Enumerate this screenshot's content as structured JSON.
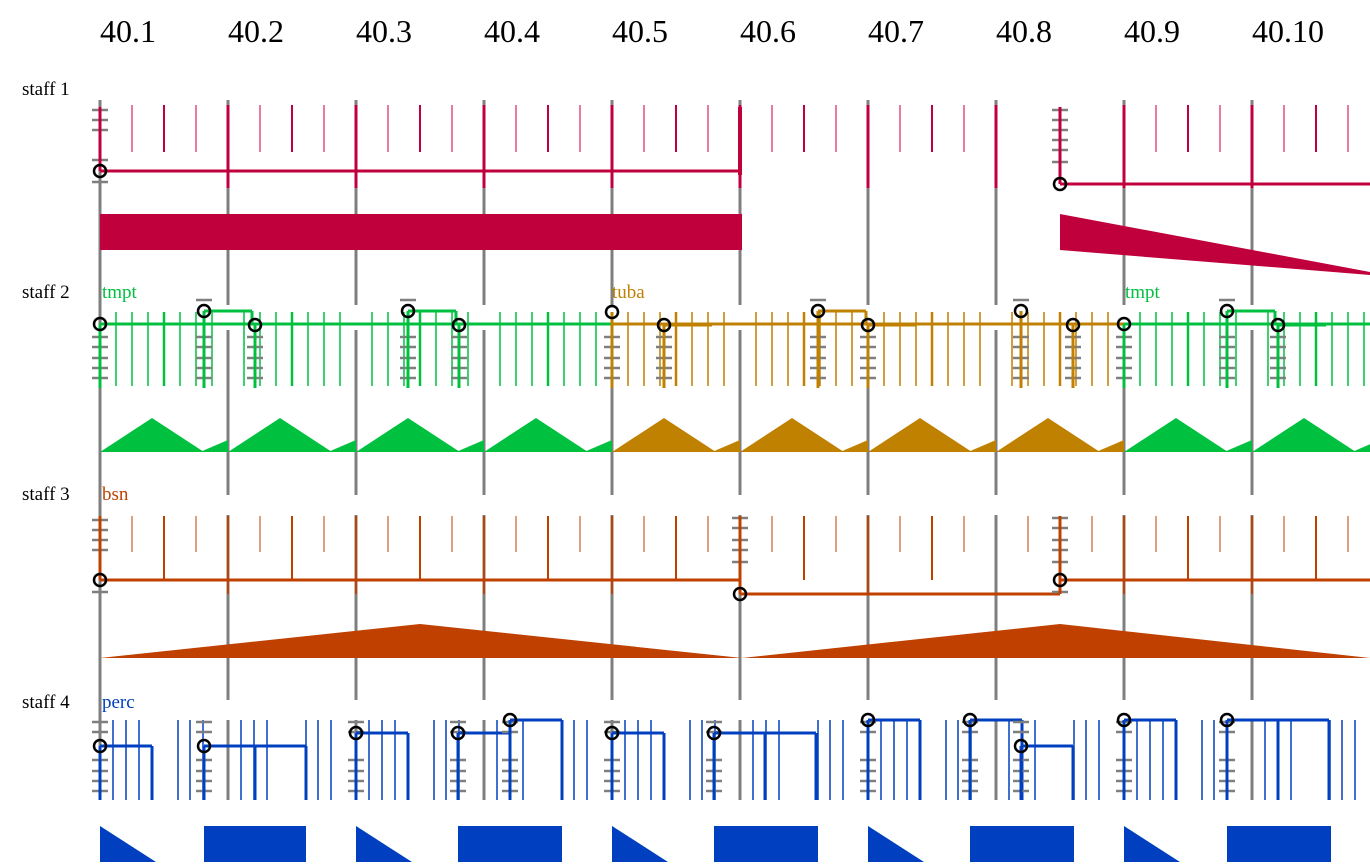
{
  "measures": [
    "40.1",
    "40.2",
    "40.3",
    "40.4",
    "40.5",
    "40.6",
    "40.7",
    "40.8",
    "40.9",
    "40.10"
  ],
  "colors": {
    "barline": "#7f7f7f",
    "staff1": "#c0003c",
    "tmpt": "#00c040",
    "tuba": "#c08000",
    "bsn": "#c04000",
    "perc": "#0040c0",
    "notehead": "#000000"
  },
  "staves": [
    {
      "label": "staff 1",
      "instruments": []
    },
    {
      "label": "staff 2",
      "instruments": [
        {
          "name": "tmpt",
          "color_key": "tmpt",
          "start_measure": 1
        },
        {
          "name": "tuba",
          "color_key": "tuba",
          "start_measure": 5
        },
        {
          "name": "tmpt",
          "color_key": "tmpt",
          "start_measure": 9
        }
      ]
    },
    {
      "label": "staff 3",
      "instruments": [
        {
          "name": "bsn",
          "color_key": "bsn",
          "start_measure": 1
        }
      ]
    },
    {
      "label": "staff 4",
      "instruments": [
        {
          "name": "perc",
          "color_key": "perc",
          "start_measure": 1
        }
      ]
    }
  ]
}
